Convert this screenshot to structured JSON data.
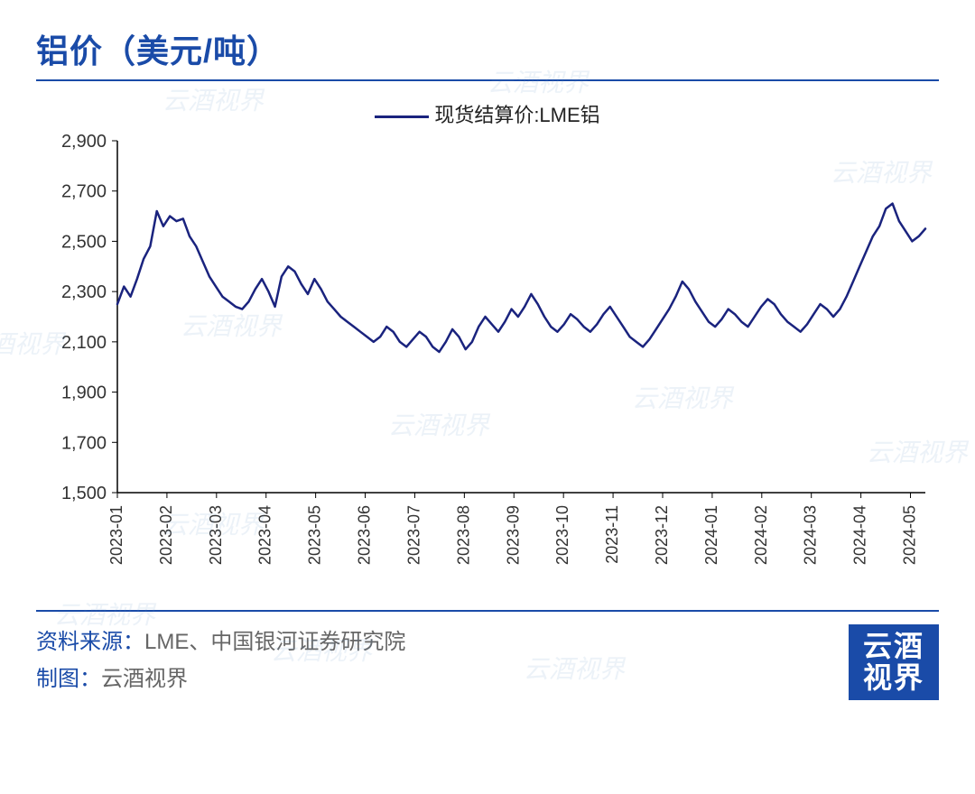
{
  "title": "铝价（美元/吨）",
  "legend_label": "现货结算价:LME铝",
  "watermark_text": "云酒视界",
  "chart": {
    "type": "line",
    "line_color": "#1a237e",
    "line_width": 2.5,
    "background_color": "#ffffff",
    "axis_color": "#000000",
    "tick_color": "#000000",
    "ylim": [
      1500,
      2900
    ],
    "ytick_step": 200,
    "yticks": [
      1500,
      1700,
      1900,
      2100,
      2300,
      2500,
      2700,
      2900
    ],
    "x_categories": [
      "2023-01",
      "2023-02",
      "2023-03",
      "2023-04",
      "2023-05",
      "2023-06",
      "2023-07",
      "2023-08",
      "2023-09",
      "2023-10",
      "2023-11",
      "2023-12",
      "2024-01",
      "2024-02",
      "2024-03",
      "2024-04",
      "2024-05"
    ],
    "values": [
      2250,
      2320,
      2280,
      2350,
      2430,
      2480,
      2620,
      2560,
      2600,
      2580,
      2590,
      2520,
      2480,
      2420,
      2360,
      2320,
      2280,
      2260,
      2240,
      2230,
      2260,
      2310,
      2350,
      2300,
      2240,
      2360,
      2400,
      2380,
      2330,
      2290,
      2350,
      2310,
      2260,
      2230,
      2200,
      2180,
      2160,
      2140,
      2120,
      2100,
      2120,
      2160,
      2140,
      2100,
      2080,
      2110,
      2140,
      2120,
      2080,
      2060,
      2100,
      2150,
      2120,
      2070,
      2100,
      2160,
      2200,
      2170,
      2140,
      2180,
      2230,
      2200,
      2240,
      2290,
      2250,
      2200,
      2160,
      2140,
      2170,
      2210,
      2190,
      2160,
      2140,
      2170,
      2210,
      2240,
      2200,
      2160,
      2120,
      2100,
      2080,
      2110,
      2150,
      2190,
      2230,
      2280,
      2340,
      2310,
      2260,
      2220,
      2180,
      2160,
      2190,
      2230,
      2210,
      2180,
      2160,
      2200,
      2240,
      2270,
      2250,
      2210,
      2180,
      2160,
      2140,
      2170,
      2210,
      2250,
      2230,
      2200,
      2230,
      2280,
      2340,
      2400,
      2460,
      2520,
      2560,
      2630,
      2650,
      2580,
      2540,
      2500,
      2520,
      2550
    ],
    "title_fontsize": 36,
    "label_fontsize": 20,
    "xlabel_fontsize": 18
  },
  "footer": {
    "source_label": "资料来源：",
    "source_text": "LME、中国银河证券研究院",
    "credit_label": "制图：",
    "credit_text": "云酒视界",
    "logo_line1": "云酒",
    "logo_line2": "视界"
  },
  "colors": {
    "brand_blue": "#1a4ba8",
    "text_gray": "#666666",
    "watermark": "rgba(100,150,200,0.12)"
  }
}
